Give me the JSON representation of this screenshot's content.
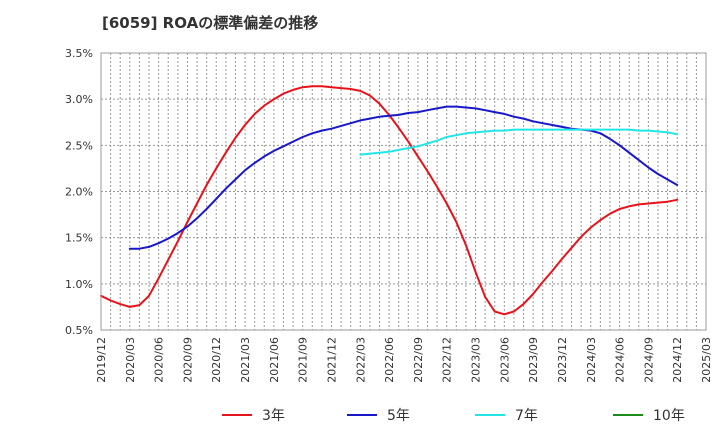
{
  "title": "[6059]  ROAの標準偏差の推移",
  "chart_data": {
    "type": "line",
    "title": "[6059]  ROAの標準偏差の推移",
    "xlabel": "",
    "ylabel": "",
    "ylim": [
      0.5,
      3.5
    ],
    "yticks": [
      "3.5%",
      "3.0%",
      "2.5%",
      "2.0%",
      "1.5%",
      "1.0%",
      "0.5%"
    ],
    "ytick_values": [
      3.5,
      3.0,
      2.5,
      2.0,
      1.5,
      1.0,
      0.5
    ],
    "xticks": [
      "2019/12",
      "2020/03",
      "2020/06",
      "2020/09",
      "2020/12",
      "2021/03",
      "2021/06",
      "2021/09",
      "2021/12",
      "2022/03",
      "2022/06",
      "2022/09",
      "2022/12",
      "2023/03",
      "2023/06",
      "2023/09",
      "2023/12",
      "2024/03",
      "2024/06",
      "2024/09",
      "2024/12",
      "2025/03"
    ],
    "grid": true,
    "legend_position": "bottom",
    "series": [
      {
        "name": "3年",
        "color": "#e8121a",
        "points": [
          [
            "2019/12",
            0.87
          ],
          [
            "2020/01",
            0.82
          ],
          [
            "2020/02",
            0.78
          ],
          [
            "2020/03",
            0.75
          ],
          [
            "2020/04",
            0.77
          ],
          [
            "2020/05",
            0.87
          ],
          [
            "2020/06",
            1.06
          ],
          [
            "2020/07",
            1.26
          ],
          [
            "2020/08",
            1.46
          ],
          [
            "2020/09",
            1.67
          ],
          [
            "2020/10",
            1.87
          ],
          [
            "2020/11",
            2.07
          ],
          [
            "2020/12",
            2.25
          ],
          [
            "2021/01",
            2.42
          ],
          [
            "2021/02",
            2.58
          ],
          [
            "2021/03",
            2.72
          ],
          [
            "2021/04",
            2.84
          ],
          [
            "2021/05",
            2.93
          ],
          [
            "2021/06",
            3.0
          ],
          [
            "2021/07",
            3.06
          ],
          [
            "2021/08",
            3.1
          ],
          [
            "2021/09",
            3.13
          ],
          [
            "2021/10",
            3.14
          ],
          [
            "2021/11",
            3.14
          ],
          [
            "2021/12",
            3.13
          ],
          [
            "2022/01",
            3.12
          ],
          [
            "2022/02",
            3.11
          ],
          [
            "2022/03",
            3.09
          ],
          [
            "2022/04",
            3.04
          ],
          [
            "2022/05",
            2.95
          ],
          [
            "2022/06",
            2.83
          ],
          [
            "2022/07",
            2.69
          ],
          [
            "2022/08",
            2.54
          ],
          [
            "2022/09",
            2.38
          ],
          [
            "2022/10",
            2.22
          ],
          [
            "2022/11",
            2.05
          ],
          [
            "2022/12",
            1.87
          ],
          [
            "2023/01",
            1.67
          ],
          [
            "2023/02",
            1.42
          ],
          [
            "2023/03",
            1.13
          ],
          [
            "2023/04",
            0.86
          ],
          [
            "2023/05",
            0.7
          ],
          [
            "2023/06",
            0.67
          ],
          [
            "2023/07",
            0.7
          ],
          [
            "2023/08",
            0.78
          ],
          [
            "2023/09",
            0.89
          ],
          [
            "2023/10",
            1.02
          ],
          [
            "2023/11",
            1.14
          ],
          [
            "2023/12",
            1.27
          ],
          [
            "2024/01",
            1.39
          ],
          [
            "2024/02",
            1.51
          ],
          [
            "2024/03",
            1.61
          ],
          [
            "2024/04",
            1.69
          ],
          [
            "2024/05",
            1.76
          ],
          [
            "2024/06",
            1.81
          ],
          [
            "2024/07",
            1.84
          ],
          [
            "2024/08",
            1.86
          ],
          [
            "2024/09",
            1.87
          ],
          [
            "2024/10",
            1.88
          ],
          [
            "2024/11",
            1.89
          ],
          [
            "2024/12",
            1.91
          ]
        ]
      },
      {
        "name": "5年",
        "color": "#1818c8",
        "points": [
          [
            "2020/03",
            1.38
          ],
          [
            "2020/04",
            1.38
          ],
          [
            "2020/05",
            1.4
          ],
          [
            "2020/06",
            1.44
          ],
          [
            "2020/07",
            1.49
          ],
          [
            "2020/08",
            1.55
          ],
          [
            "2020/09",
            1.62
          ],
          [
            "2020/10",
            1.71
          ],
          [
            "2020/11",
            1.81
          ],
          [
            "2020/12",
            1.92
          ],
          [
            "2021/01",
            2.03
          ],
          [
            "2021/02",
            2.13
          ],
          [
            "2021/03",
            2.23
          ],
          [
            "2021/04",
            2.31
          ],
          [
            "2021/05",
            2.38
          ],
          [
            "2021/06",
            2.44
          ],
          [
            "2021/07",
            2.49
          ],
          [
            "2021/08",
            2.54
          ],
          [
            "2021/09",
            2.59
          ],
          [
            "2021/10",
            2.63
          ],
          [
            "2021/11",
            2.66
          ],
          [
            "2021/12",
            2.68
          ],
          [
            "2022/01",
            2.71
          ],
          [
            "2022/02",
            2.74
          ],
          [
            "2022/03",
            2.77
          ],
          [
            "2022/04",
            2.79
          ],
          [
            "2022/05",
            2.81
          ],
          [
            "2022/06",
            2.82
          ],
          [
            "2022/07",
            2.83
          ],
          [
            "2022/08",
            2.85
          ],
          [
            "2022/09",
            2.86
          ],
          [
            "2022/10",
            2.88
          ],
          [
            "2022/11",
            2.9
          ],
          [
            "2022/12",
            2.92
          ],
          [
            "2023/01",
            2.92
          ],
          [
            "2023/02",
            2.91
          ],
          [
            "2023/03",
            2.9
          ],
          [
            "2023/04",
            2.88
          ],
          [
            "2023/05",
            2.86
          ],
          [
            "2023/06",
            2.84
          ],
          [
            "2023/07",
            2.81
          ],
          [
            "2023/08",
            2.79
          ],
          [
            "2023/09",
            2.76
          ],
          [
            "2023/10",
            2.74
          ],
          [
            "2023/11",
            2.72
          ],
          [
            "2023/12",
            2.7
          ],
          [
            "2024/01",
            2.68
          ],
          [
            "2024/02",
            2.67
          ],
          [
            "2024/03",
            2.66
          ],
          [
            "2024/04",
            2.63
          ],
          [
            "2024/05",
            2.57
          ],
          [
            "2024/06",
            2.5
          ],
          [
            "2024/07",
            2.42
          ],
          [
            "2024/08",
            2.34
          ],
          [
            "2024/09",
            2.26
          ],
          [
            "2024/10",
            2.19
          ],
          [
            "2024/11",
            2.13
          ],
          [
            "2024/12",
            2.07
          ]
        ]
      },
      {
        "name": "7年",
        "color": "#22e6e6",
        "points": [
          [
            "2022/03",
            2.4
          ],
          [
            "2022/04",
            2.41
          ],
          [
            "2022/05",
            2.42
          ],
          [
            "2022/06",
            2.43
          ],
          [
            "2022/07",
            2.45
          ],
          [
            "2022/08",
            2.47
          ],
          [
            "2022/09",
            2.49
          ],
          [
            "2022/10",
            2.52
          ],
          [
            "2022/11",
            2.55
          ],
          [
            "2022/12",
            2.59
          ],
          [
            "2023/01",
            2.61
          ],
          [
            "2023/02",
            2.63
          ],
          [
            "2023/03",
            2.64
          ],
          [
            "2023/04",
            2.65
          ],
          [
            "2023/05",
            2.66
          ],
          [
            "2023/06",
            2.66
          ],
          [
            "2023/07",
            2.67
          ],
          [
            "2023/08",
            2.67
          ],
          [
            "2023/09",
            2.67
          ],
          [
            "2023/10",
            2.67
          ],
          [
            "2023/11",
            2.67
          ],
          [
            "2023/12",
            2.67
          ],
          [
            "2024/01",
            2.67
          ],
          [
            "2024/02",
            2.67
          ],
          [
            "2024/03",
            2.67
          ],
          [
            "2024/04",
            2.67
          ],
          [
            "2024/05",
            2.67
          ],
          [
            "2024/06",
            2.67
          ],
          [
            "2024/07",
            2.67
          ],
          [
            "2024/08",
            2.66
          ],
          [
            "2024/09",
            2.66
          ],
          [
            "2024/10",
            2.65
          ],
          [
            "2024/11",
            2.64
          ],
          [
            "2024/12",
            2.62
          ]
        ]
      },
      {
        "name": "10年",
        "color": "#1a8c1a",
        "points": []
      }
    ]
  }
}
